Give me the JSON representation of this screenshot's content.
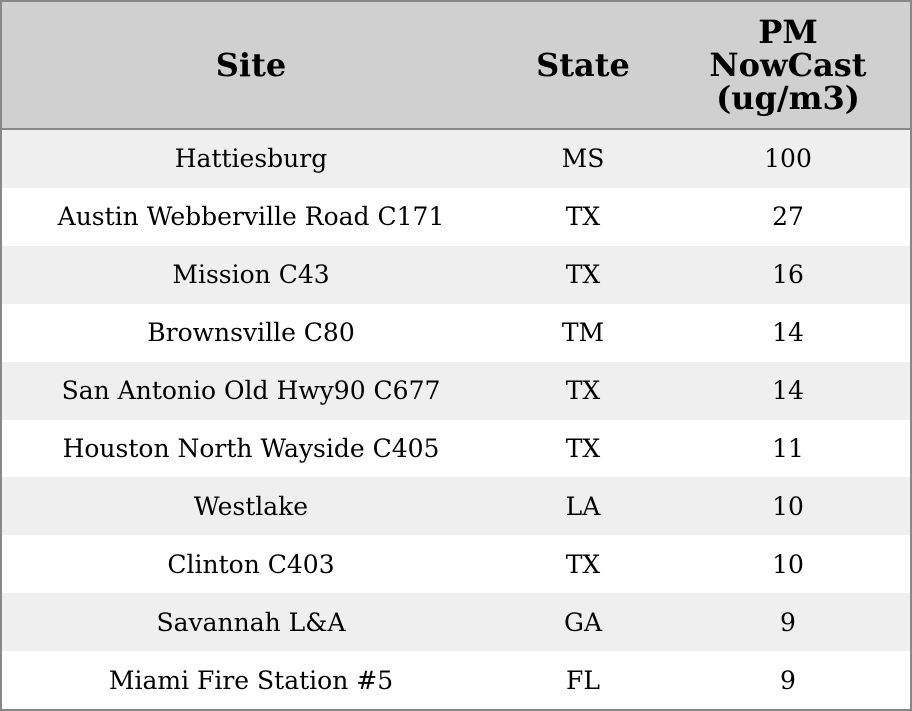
{
  "table": {
    "header": [
      "Site",
      "State",
      "PM NowCast (ug/m3)"
    ],
    "rows": [
      [
        "Hattiesburg",
        "MS",
        100
      ],
      [
        "Austin Webberville Road C171",
        "TX",
        27
      ],
      [
        "Mission C43",
        "TX",
        16
      ],
      [
        "Brownsville C80",
        "TM",
        14
      ],
      [
        "San Antonio Old Hwy90 C677",
        "TX",
        14
      ],
      [
        "Houston North Wayside C405",
        "TX",
        11
      ],
      [
        "Westlake",
        "LA",
        10
      ],
      [
        "Clinton C403",
        "TX",
        10
      ],
      [
        "Savannah L&A",
        "GA",
        9
      ],
      [
        "Miami Fire Station #5",
        "FL",
        9
      ]
    ]
  }
}
